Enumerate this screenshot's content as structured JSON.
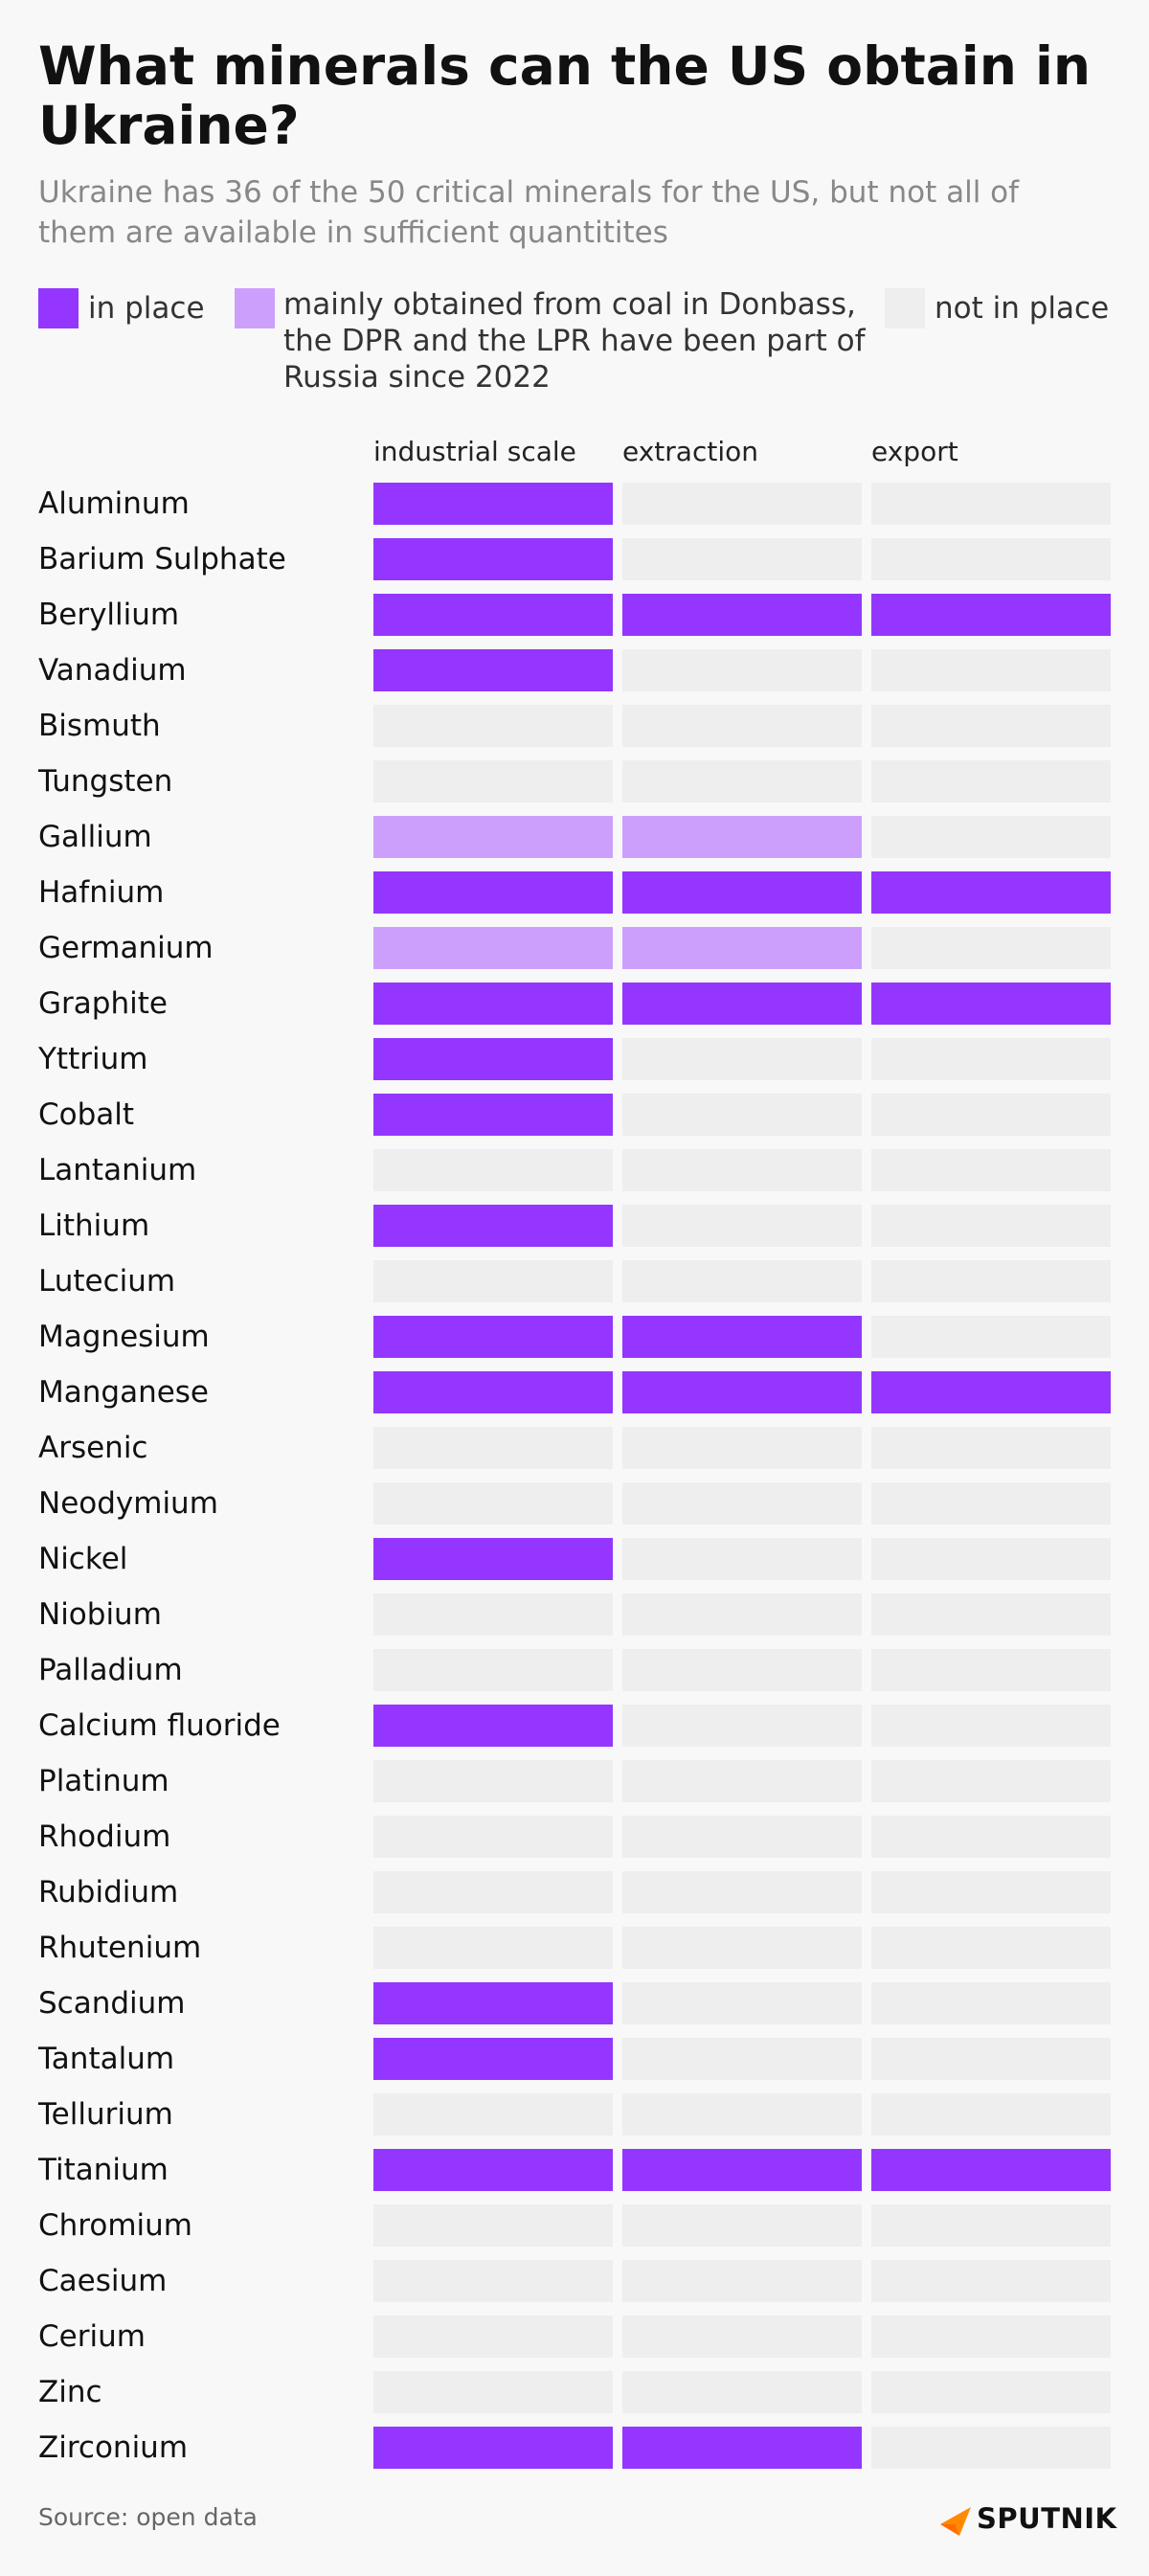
{
  "header": {
    "title": "What minerals can the US obtain in Ukraine?",
    "subtitle": "Ukraine has 36 of the 50 critical minerals for the US, but not all of them are available in sufficient quantitites"
  },
  "legend": {
    "in_place": "in place",
    "donbass": "mainly obtained from coal in Donbass, the DPR and the LPR have been part of Russia since 2022",
    "not_in_place": "not in place"
  },
  "colors": {
    "in_place": "#9436ff",
    "donbass": "#cc9ffc",
    "not_in_place": "#eeeeee",
    "accent_logo": "#ff8a00"
  },
  "source": "Source: open data",
  "logo": {
    "text": "SPUTNIK",
    "icon": "sputnik-logo-icon"
  },
  "chart_data": {
    "type": "table",
    "columns": [
      "industrial scale",
      "extraction",
      "export"
    ],
    "status_codes": {
      "2": "in place",
      "1": "mainly obtained from coal in Donbass, the DPR and the LPR have been part of Russia since 2022",
      "0": "not in place"
    },
    "rows": [
      {
        "mineral": "Aluminum",
        "values": [
          2,
          0,
          0
        ]
      },
      {
        "mineral": "Barium Sulphate",
        "values": [
          2,
          0,
          0
        ]
      },
      {
        "mineral": "Beryllium",
        "values": [
          2,
          2,
          2
        ]
      },
      {
        "mineral": "Vanadium",
        "values": [
          2,
          0,
          0
        ]
      },
      {
        "mineral": "Bismuth",
        "values": [
          0,
          0,
          0
        ]
      },
      {
        "mineral": "Tungsten",
        "values": [
          0,
          0,
          0
        ]
      },
      {
        "mineral": "Gallium",
        "values": [
          1,
          1,
          0
        ]
      },
      {
        "mineral": "Hafnium",
        "values": [
          2,
          2,
          2
        ]
      },
      {
        "mineral": "Germanium",
        "values": [
          1,
          1,
          0
        ]
      },
      {
        "mineral": "Graphite",
        "values": [
          2,
          2,
          2
        ]
      },
      {
        "mineral": "Yttrium",
        "values": [
          2,
          0,
          0
        ]
      },
      {
        "mineral": "Cobalt",
        "values": [
          2,
          0,
          0
        ]
      },
      {
        "mineral": "Lantanium",
        "values": [
          0,
          0,
          0
        ]
      },
      {
        "mineral": "Lithium",
        "values": [
          2,
          0,
          0
        ]
      },
      {
        "mineral": "Lutecium",
        "values": [
          0,
          0,
          0
        ]
      },
      {
        "mineral": "Magnesium",
        "values": [
          2,
          2,
          0
        ]
      },
      {
        "mineral": "Manganese",
        "values": [
          2,
          2,
          2
        ]
      },
      {
        "mineral": "Arsenic",
        "values": [
          0,
          0,
          0
        ]
      },
      {
        "mineral": "Neodymium",
        "values": [
          0,
          0,
          0
        ]
      },
      {
        "mineral": "Nickel",
        "values": [
          2,
          0,
          0
        ]
      },
      {
        "mineral": "Niobium",
        "values": [
          0,
          0,
          0
        ]
      },
      {
        "mineral": "Palladium",
        "values": [
          0,
          0,
          0
        ]
      },
      {
        "mineral": "Calcium fluoride",
        "values": [
          2,
          0,
          0
        ]
      },
      {
        "mineral": "Platinum",
        "values": [
          0,
          0,
          0
        ]
      },
      {
        "mineral": "Rhodium",
        "values": [
          0,
          0,
          0
        ]
      },
      {
        "mineral": "Rubidium",
        "values": [
          0,
          0,
          0
        ]
      },
      {
        "mineral": "Rhutenium",
        "values": [
          0,
          0,
          0
        ]
      },
      {
        "mineral": "Scandium",
        "values": [
          2,
          0,
          0
        ]
      },
      {
        "mineral": "Tantalum",
        "values": [
          2,
          0,
          0
        ]
      },
      {
        "mineral": "Tellurium",
        "values": [
          0,
          0,
          0
        ]
      },
      {
        "mineral": "Titanium",
        "values": [
          2,
          2,
          2
        ]
      },
      {
        "mineral": "Chromium",
        "values": [
          0,
          0,
          0
        ]
      },
      {
        "mineral": "Caesium",
        "values": [
          0,
          0,
          0
        ]
      },
      {
        "mineral": "Cerium",
        "values": [
          0,
          0,
          0
        ]
      },
      {
        "mineral": "Zinc",
        "values": [
          0,
          0,
          0
        ]
      },
      {
        "mineral": "Zirconium",
        "values": [
          2,
          2,
          0
        ]
      }
    ]
  }
}
